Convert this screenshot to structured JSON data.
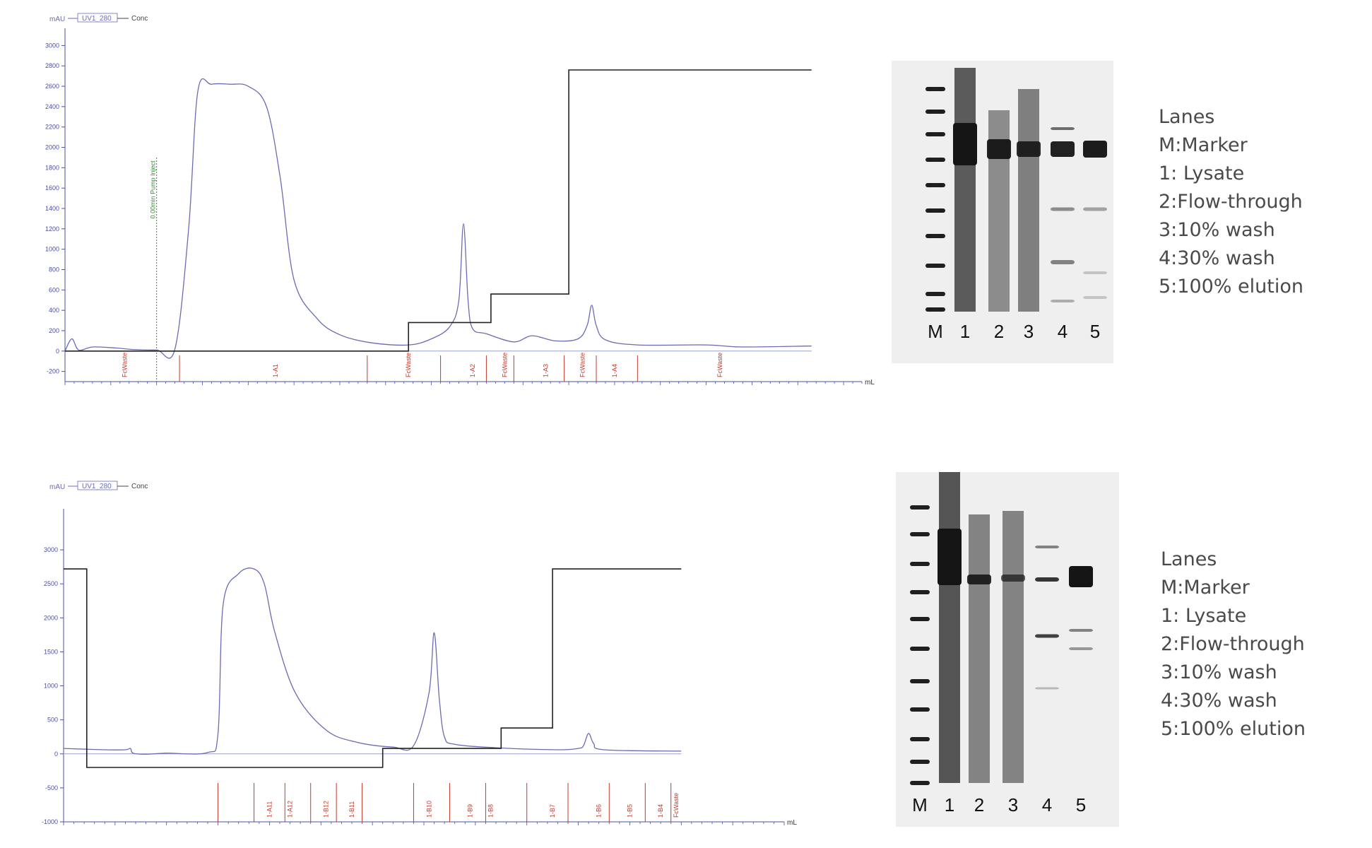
{
  "chart_data": [
    {
      "type": "line",
      "legend": {
        "y_unit": "mAU",
        "series": [
          "UV1_280",
          "Conc"
        ]
      },
      "x_unit": "mL",
      "ylim": [
        -300,
        3100
      ],
      "y_ticks": [
        -200,
        0,
        200,
        400,
        600,
        800,
        1000,
        1200,
        1400,
        1600,
        1800,
        2000,
        2200,
        2400,
        2600,
        2800,
        3000
      ],
      "injection_marker": {
        "x": 20,
        "label": "0.00min Pump Inject"
      },
      "fractions": [
        {
          "x": 13,
          "label": "FcWaste"
        },
        {
          "x": 46,
          "label": "1-A1"
        },
        {
          "x": 75,
          "label": "FcWaste"
        },
        {
          "x": 89,
          "label": "1-A2"
        },
        {
          "x": 96,
          "label": "FcWaste"
        },
        {
          "x": 105,
          "label": "1-A3"
        },
        {
          "x": 113,
          "label": "FcWaste"
        },
        {
          "x": 120,
          "label": "1-A4"
        },
        {
          "x": 143,
          "label": "FcWaste"
        }
      ],
      "fraction_ticks": [
        25,
        66,
        82,
        92,
        98,
        109,
        116,
        125
      ],
      "series": [
        {
          "name": "UV1_280",
          "color": "#6b6bb5",
          "points": [
            [
              0,
              0
            ],
            [
              1.5,
              120
            ],
            [
              3,
              10
            ],
            [
              6,
              40
            ],
            [
              11,
              30
            ],
            [
              15,
              15
            ],
            [
              20,
              10
            ],
            [
              24,
              20
            ],
            [
              27,
              1200
            ],
            [
              29,
              2550
            ],
            [
              32,
              2620
            ],
            [
              36,
              2620
            ],
            [
              40,
              2600
            ],
            [
              44,
              2400
            ],
            [
              47,
              1700
            ],
            [
              50,
              700
            ],
            [
              55,
              320
            ],
            [
              60,
              160
            ],
            [
              67,
              80
            ],
            [
              75,
              60
            ],
            [
              80,
              120
            ],
            [
              84,
              240
            ],
            [
              86,
              500
            ],
            [
              87,
              1250
            ],
            [
              88,
              500
            ],
            [
              89,
              220
            ],
            [
              92,
              170
            ],
            [
              98,
              90
            ],
            [
              102,
              150
            ],
            [
              107,
              100
            ],
            [
              112,
              120
            ],
            [
              114,
              250
            ],
            [
              115,
              450
            ],
            [
              116,
              250
            ],
            [
              118,
              110
            ],
            [
              125,
              60
            ],
            [
              140,
              60
            ],
            [
              148,
              40
            ],
            [
              163,
              50
            ]
          ]
        },
        {
          "name": "Conc",
          "color": "#222222",
          "points": [
            [
              0,
              0
            ],
            [
              75,
              0
            ],
            [
              75,
              280
            ],
            [
              93,
              280
            ],
            [
              93,
              560
            ],
            [
              110,
              560
            ],
            [
              110,
              2760
            ],
            [
              163,
              2760
            ]
          ]
        }
      ]
    },
    {
      "type": "line",
      "legend": {
        "y_unit": "mAU",
        "series": [
          "UV1_280",
          "Conc"
        ]
      },
      "x_unit": "mL",
      "ylim": [
        -1000,
        3500
      ],
      "y_ticks": [
        -1000,
        -500,
        0,
        500,
        1000,
        1500,
        2000,
        2500,
        3000
      ],
      "fractions": [
        {
          "x": 40,
          "label": "1-A11"
        },
        {
          "x": 44,
          "label": "1-A12"
        },
        {
          "x": 51,
          "label": "1-B12"
        },
        {
          "x": 56,
          "label": "1-B11"
        },
        {
          "x": 71,
          "label": "1-B10"
        },
        {
          "x": 79,
          "label": "1-B9"
        },
        {
          "x": 83,
          "label": "1-B8"
        },
        {
          "x": 95,
          "label": "1-B7"
        },
        {
          "x": 104,
          "label": "1-B6"
        },
        {
          "x": 110,
          "label": "1-B5"
        },
        {
          "x": 116,
          "label": "1-B4"
        },
        {
          "x": 119,
          "label": "FcWaste"
        }
      ],
      "fraction_ticks": [
        30,
        37,
        43,
        48,
        53,
        58,
        68,
        75,
        82,
        90,
        98,
        106,
        113,
        118
      ],
      "series": [
        {
          "name": "UV1_280",
          "color": "#6b6bb5",
          "points": [
            [
              0,
              80
            ],
            [
              8,
              60
            ],
            [
              12,
              60
            ],
            [
              13,
              80
            ],
            [
              13.5,
              10
            ],
            [
              16,
              -5
            ],
            [
              20,
              10
            ],
            [
              28,
              20
            ],
            [
              30,
              300
            ],
            [
              31,
              2200
            ],
            [
              34,
              2650
            ],
            [
              37,
              2720
            ],
            [
              39,
              2500
            ],
            [
              41,
              1800
            ],
            [
              45,
              900
            ],
            [
              51,
              350
            ],
            [
              57,
              170
            ],
            [
              64,
              100
            ],
            [
              68,
              120
            ],
            [
              71,
              900
            ],
            [
              72,
              1780
            ],
            [
              73,
              800
            ],
            [
              74,
              250
            ],
            [
              76,
              140
            ],
            [
              84,
              90
            ],
            [
              96,
              60
            ],
            [
              100,
              80
            ],
            [
              101,
              120
            ],
            [
              102,
              300
            ],
            [
              103,
              150
            ],
            [
              105,
              60
            ],
            [
              120,
              40
            ]
          ]
        },
        {
          "name": "Conc",
          "color": "#222222",
          "points": [
            [
              0,
              2720
            ],
            [
              4.5,
              2720
            ],
            [
              4.5,
              -200
            ],
            [
              62,
              -200
            ],
            [
              62,
              80
            ],
            [
              85,
              80
            ],
            [
              85,
              380
            ],
            [
              95,
              380
            ],
            [
              95,
              2720
            ],
            [
              120,
              2720
            ]
          ]
        }
      ]
    }
  ],
  "gels": [
    {
      "lane_labels": [
        "M",
        "1",
        "2",
        "3",
        "4",
        "5"
      ],
      "legend": [
        "Lanes",
        "M:Marker",
        "1: Lysate",
        "2:Flow-through",
        "3:10% wash",
        "4:30% wash",
        "5:100% elution"
      ]
    },
    {
      "lane_labels": [
        "M",
        "1",
        "2",
        "3",
        "4",
        "5"
      ],
      "legend": [
        "Lanes",
        "M:Marker",
        "1: Lysate",
        "2:Flow-through",
        "3:10% wash",
        "4:30% wash",
        "5:100% elution"
      ]
    }
  ],
  "colors": {
    "uv": "#6b6bb5",
    "conc": "#222222",
    "axis": "#4a4fa6",
    "fraction": "#c0392b",
    "inject": "#3a8a3a"
  }
}
